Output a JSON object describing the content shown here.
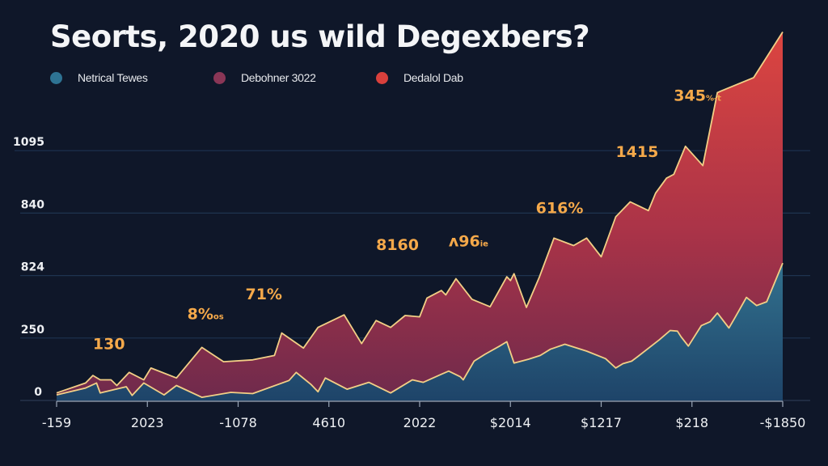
{
  "chart_data": {
    "type": "area",
    "title": "Seorts, 2020 us wild Degexbers?",
    "xlabel": "",
    "ylabel": "",
    "grid": true,
    "legend_position": "top-left",
    "y_ticks": [
      "0",
      "250",
      "824",
      "840",
      "1095"
    ],
    "x_ticks": [
      "-159",
      "2023",
      "-1078",
      "4610",
      "2022",
      "$2014",
      "$1217",
      "$218",
      "-$1850"
    ],
    "ylim_gridline_index": [
      0,
      4.7
    ],
    "x_domain": [
      0,
      100
    ],
    "legend": [
      {
        "name": "Netrical Tewes",
        "color": "#2e7393"
      },
      {
        "name": "Debohner 3022",
        "color": "#8a3656"
      },
      {
        "name": "Dedalol Dab",
        "color": "#d9403c"
      }
    ],
    "series": [
      {
        "name": "Netrical Tewes",
        "role": "lower",
        "unit": "gridline-index",
        "points": [
          [
            0,
            0.09
          ],
          [
            4,
            0.2
          ],
          [
            5.5,
            0.28
          ],
          [
            6,
            0.12
          ],
          [
            9.6,
            0.22
          ],
          [
            10.4,
            0.08
          ],
          [
            12,
            0.28
          ],
          [
            14.8,
            0.09
          ],
          [
            16.5,
            0.24
          ],
          [
            20,
            0.05
          ],
          [
            24,
            0.13
          ],
          [
            27,
            0.11
          ],
          [
            32,
            0.32
          ],
          [
            33,
            0.45
          ],
          [
            35,
            0.26
          ],
          [
            36,
            0.14
          ],
          [
            37,
            0.36
          ],
          [
            40,
            0.18
          ],
          [
            43,
            0.29
          ],
          [
            46,
            0.12
          ],
          [
            49,
            0.33
          ],
          [
            50.5,
            0.29
          ],
          [
            53,
            0.42
          ],
          [
            54,
            0.47
          ],
          [
            55.6,
            0.38
          ],
          [
            56,
            0.33
          ],
          [
            57.5,
            0.63
          ],
          [
            59,
            0.74
          ],
          [
            61,
            0.87
          ],
          [
            62,
            0.94
          ],
          [
            63,
            0.6
          ],
          [
            65,
            0.66
          ],
          [
            66.6,
            0.72
          ],
          [
            68,
            0.82
          ],
          [
            70,
            0.9
          ],
          [
            73,
            0.79
          ],
          [
            75.6,
            0.67
          ],
          [
            77,
            0.52
          ],
          [
            78,
            0.59
          ],
          [
            79.2,
            0.63
          ],
          [
            80,
            0.7
          ],
          [
            83,
            0.97
          ],
          [
            84.5,
            1.12
          ],
          [
            85.5,
            1.11
          ],
          [
            86,
            1.02
          ],
          [
            87,
            0.87
          ],
          [
            88.8,
            1.2
          ],
          [
            90,
            1.26
          ],
          [
            91,
            1.4
          ],
          [
            92.6,
            1.16
          ],
          [
            93.4,
            1.32
          ],
          [
            95,
            1.65
          ],
          [
            96.4,
            1.52
          ],
          [
            97.8,
            1.58
          ],
          [
            100,
            2.2
          ]
        ]
      },
      {
        "name": "Dedalol Dab",
        "role": "upper",
        "unit": "gridline-index",
        "points": [
          [
            0,
            0.12
          ],
          [
            4,
            0.28
          ],
          [
            5,
            0.4
          ],
          [
            6,
            0.33
          ],
          [
            7.5,
            0.33
          ],
          [
            8.3,
            0.24
          ],
          [
            10,
            0.45
          ],
          [
            12,
            0.33
          ],
          [
            13,
            0.52
          ],
          [
            16.5,
            0.36
          ],
          [
            20,
            0.85
          ],
          [
            23,
            0.62
          ],
          [
            27,
            0.65
          ],
          [
            30,
            0.72
          ],
          [
            31,
            1.08
          ],
          [
            34,
            0.84
          ],
          [
            36,
            1.17
          ],
          [
            39.6,
            1.37
          ],
          [
            42,
            0.91
          ],
          [
            44,
            1.28
          ],
          [
            46,
            1.17
          ],
          [
            48,
            1.36
          ],
          [
            50,
            1.34
          ],
          [
            51,
            1.64
          ],
          [
            53,
            1.76
          ],
          [
            53.6,
            1.69
          ],
          [
            55,
            1.95
          ],
          [
            57.2,
            1.62
          ],
          [
            59.7,
            1.5
          ],
          [
            62,
            1.98
          ],
          [
            62.5,
            1.92
          ],
          [
            63,
            2.03
          ],
          [
            64.7,
            1.49
          ],
          [
            66.5,
            1.98
          ],
          [
            68.5,
            2.6
          ],
          [
            71.2,
            2.48
          ],
          [
            73,
            2.6
          ],
          [
            75,
            2.3
          ],
          [
            77,
            2.94
          ],
          [
            79,
            3.18
          ],
          [
            81.5,
            3.04
          ],
          [
            82.5,
            3.32
          ],
          [
            84,
            3.56
          ],
          [
            85,
            3.62
          ],
          [
            86.6,
            4.07
          ],
          [
            89,
            3.76
          ],
          [
            91,
            4.93
          ],
          [
            96,
            5.17
          ],
          [
            100,
            5.9
          ]
        ]
      }
    ],
    "data_labels": [
      {
        "text": "130",
        "x": 5,
        "y": 0.82
      },
      {
        "text": "8%",
        "suffix": "os",
        "x": 18,
        "y": 1.3
      },
      {
        "text": "71%",
        "x": 26,
        "y": 1.62
      },
      {
        "text": "8160",
        "x": 44,
        "y": 2.41
      },
      {
        "text": "ʌ96",
        "suffix": "ie",
        "x": 54,
        "y": 2.47
      },
      {
        "text": "616%",
        "x": 66,
        "y": 3.0
      },
      {
        "text": "1415",
        "x": 77,
        "y": 3.9
      },
      {
        "text": "345",
        "suffix": "%-t",
        "x": 85,
        "y": 4.8
      }
    ]
  }
}
